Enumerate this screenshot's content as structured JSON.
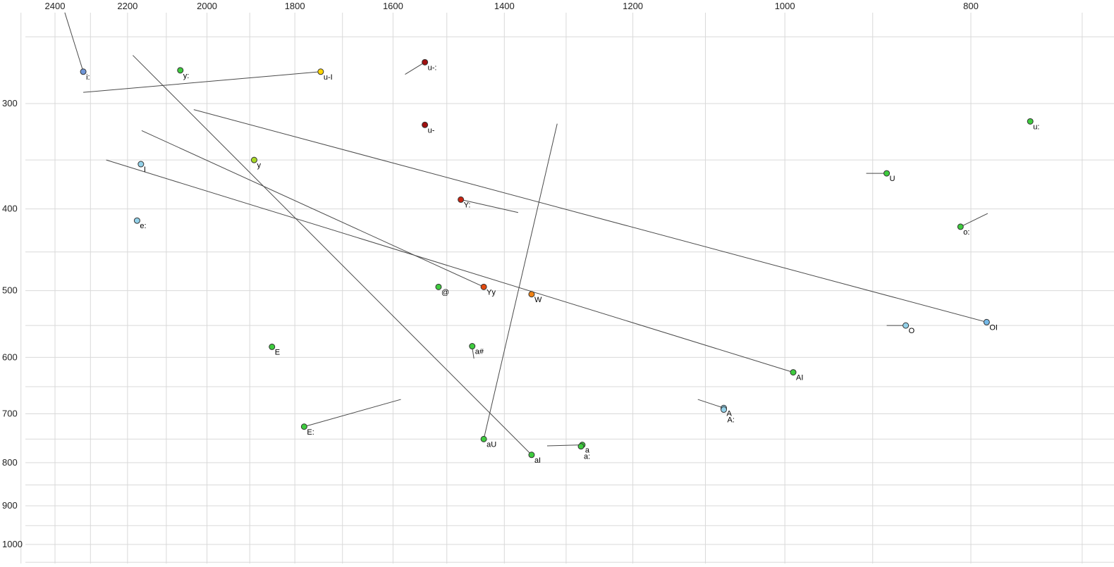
{
  "chart_data": {
    "type": "scatter",
    "title": "",
    "description": "Vowel formant chart: F2 (Hz) on top x-axis, F1 (Hz) on left y-axis, both log-scaled and reversed; labeled vowel points with diphthong/onglide trajectory lines",
    "x_axis": {
      "ticks": [
        2400,
        2200,
        2000,
        1800,
        1600,
        1400,
        1200,
        1000,
        800
      ],
      "scale": "log",
      "reversed": true
    },
    "y_axis": {
      "ticks": [
        300,
        400,
        500,
        600,
        700,
        800,
        900,
        1000
      ],
      "scale": "log",
      "reversed": true
    },
    "grid": {
      "x_step": 100,
      "x_range": [
        700,
        2500
      ],
      "y_step": 50,
      "y_range": [
        250,
        1050
      ]
    },
    "colors": {
      "blue": "#6f96d8",
      "lightblue": "#93d1e9",
      "skyblue": "#74b9e8",
      "green": "#3ecb3e",
      "yellowgreen": "#a8d827",
      "yellow": "#ffd500",
      "darkred": "#a01010",
      "red": "#c62310",
      "orangered": "#e2490f",
      "orange": "#f08214",
      "marker_stroke": "#333333",
      "grid": "#d9d9d9",
      "segment": "#4a4a4a",
      "axis_text": "#222222",
      "label_text": "#000000",
      "background": "#ffffff"
    },
    "points": [
      {
        "label": "i:",
        "f2": 2320,
        "f1": 275,
        "color": "blue"
      },
      {
        "label": "y:",
        "f2": 2065,
        "f1": 274,
        "color": "green"
      },
      {
        "label": "u-I",
        "f2": 1745,
        "f1": 275,
        "color": "yellow"
      },
      {
        "label": "u-:",
        "f2": 1540,
        "f1": 268,
        "color": "darkred"
      },
      {
        "label": "u-",
        "f2": 1540,
        "f1": 318,
        "color": "darkred"
      },
      {
        "label": "u:",
        "f2": 745,
        "f1": 315,
        "color": "green"
      },
      {
        "label": "y",
        "f2": 1890,
        "f1": 350,
        "color": "yellowgreen"
      },
      {
        "label": "I",
        "f2": 2165,
        "f1": 354,
        "color": "lightblue"
      },
      {
        "label": "U",
        "f2": 885,
        "f1": 363,
        "color": "green"
      },
      {
        "label": "Y:",
        "f2": 1475,
        "f1": 390,
        "color": "red"
      },
      {
        "label": "e:",
        "f2": 2175,
        "f1": 413,
        "color": "lightblue"
      },
      {
        "label": "o:",
        "f2": 810,
        "f1": 420,
        "color": "green"
      },
      {
        "label": "@",
        "f2": 1515,
        "f1": 495,
        "color": "green"
      },
      {
        "label": "Yy",
        "f2": 1435,
        "f1": 495,
        "color": "orangered"
      },
      {
        "label": "W",
        "f2": 1355,
        "f1": 505,
        "color": "orange"
      },
      {
        "label": "O",
        "f2": 865,
        "f1": 550,
        "color": "lightblue"
      },
      {
        "label": "OI",
        "f2": 785,
        "f1": 545,
        "color": "skyblue"
      },
      {
        "label": "E",
        "f2": 1850,
        "f1": 583,
        "color": "green"
      },
      {
        "label": "a#",
        "f2": 1455,
        "f1": 582,
        "color": "green"
      },
      {
        "label": "AI",
        "f2": 990,
        "f1": 625,
        "color": "green"
      },
      {
        "label": "A",
        "f2": 1076,
        "f1": 689,
        "color": "lightblue"
      },
      {
        "label": "A:",
        "f2": 1076,
        "f1": 692,
        "color": "lightblue",
        "label_offset": [
          5,
          18
        ]
      },
      {
        "label": "E:",
        "f2": 1780,
        "f1": 725,
        "color": "green"
      },
      {
        "label": "aU",
        "f2": 1435,
        "f1": 750,
        "color": "green"
      },
      {
        "label": "aI",
        "f2": 1355,
        "f1": 783,
        "color": "green"
      },
      {
        "label": "a",
        "f2": 1275,
        "f1": 762,
        "color": "green"
      },
      {
        "label": "a:",
        "f2": 1277,
        "f1": 765,
        "color": "green",
        "label_offset": [
          4,
          18
        ]
      }
    ],
    "segments": [
      {
        "from": [
          2372,
          234
        ],
        "to": [
          2320,
          275
        ],
        "target": "i:"
      },
      {
        "from": [
          2320,
          291
        ],
        "to": [
          1745,
          275
        ],
        "target": "u-I"
      },
      {
        "from": [
          1577,
          277
        ],
        "to": [
          1540,
          268
        ],
        "target": "u-:"
      },
      {
        "from": [
          2186,
          263
        ],
        "to": [
          1355,
          783
        ],
        "target": "aI"
      },
      {
        "from": [
          2163,
          323
        ],
        "to": [
          1435,
          495
        ],
        "target": "Yy"
      },
      {
        "from": [
          2032,
          305
        ],
        "to": [
          785,
          545
        ],
        "target": "OI"
      },
      {
        "from": [
          2257,
          350
        ],
        "to": [
          990,
          625
        ],
        "target": "AI"
      },
      {
        "from": [
          1314,
          317
        ],
        "to": [
          1435,
          750
        ],
        "target": "aU"
      },
      {
        "from": [
          1475,
          390
        ],
        "to": [
          1377,
          404
        ],
        "target": "Y:"
      },
      {
        "from": [
          907,
          363
        ],
        "to": [
          885,
          363
        ],
        "target": "U"
      },
      {
        "from": [
          810,
          420
        ],
        "to": [
          784,
          405
        ],
        "target": "o:"
      },
      {
        "from": [
          885,
          550
        ],
        "to": [
          865,
          550
        ],
        "target": "O"
      },
      {
        "from": [
          1110,
          673
        ],
        "to": [
          1076,
          689
        ],
        "target": "A"
      },
      {
        "from": [
          1780,
          725
        ],
        "to": [
          1585,
          673
        ],
        "target": "E:"
      },
      {
        "from": [
          1330,
          764
        ],
        "to": [
          1275,
          762
        ],
        "target": "a"
      },
      {
        "from": [
          1455,
          584
        ],
        "to": [
          1452,
          602
        ],
        "target": "a#"
      }
    ]
  }
}
